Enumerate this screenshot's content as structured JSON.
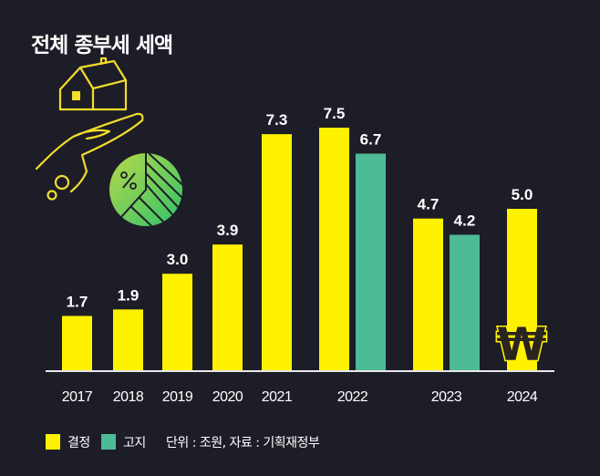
{
  "chart_data": {
    "type": "bar",
    "title": "전체 종부세 세액",
    "categories": [
      "2017",
      "2018",
      "2019",
      "2020",
      "2021",
      "2022",
      "2023",
      "2024"
    ],
    "series": [
      {
        "name": "결정",
        "color": "#FFF200",
        "values": [
          1.7,
          1.9,
          3.0,
          3.9,
          7.3,
          7.5,
          4.7,
          5.0
        ]
      },
      {
        "name": "고지",
        "color": "#4DBB96",
        "values": [
          null,
          null,
          null,
          null,
          null,
          6.7,
          4.2,
          null
        ]
      }
    ],
    "value_labels": {
      "결정": [
        "1.7",
        "1.9",
        "3.0",
        "3.9",
        "7.3",
        "7.5",
        "4.7",
        "5.0"
      ],
      "고지": [
        null,
        null,
        null,
        null,
        null,
        "6.7",
        "4.2",
        null
      ]
    },
    "unit_note": "단위 : 조원, 자료 : 기획재정부",
    "ylim": [
      0,
      8
    ],
    "grid": false,
    "legend_placement": "bottom-left",
    "background_color": "#1D1D27",
    "icons": [
      "house-on-hand-icon",
      "percent-pie-icon",
      "won-sign-icon"
    ]
  }
}
